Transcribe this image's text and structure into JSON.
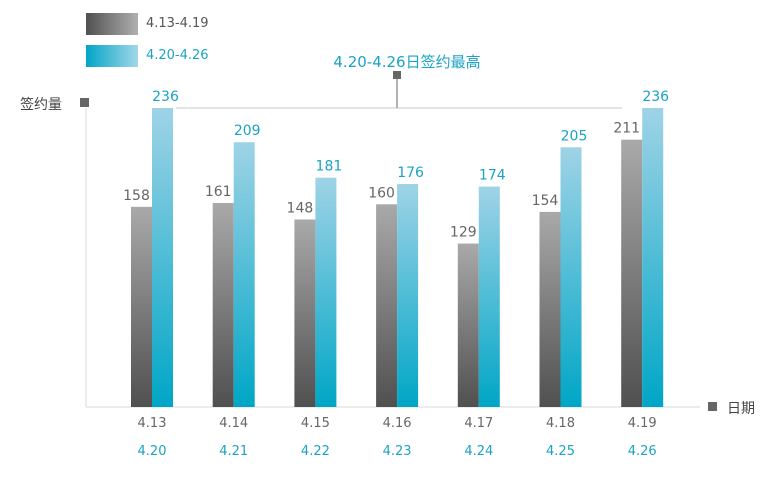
{
  "chart_data": {
    "type": "bar",
    "title": "",
    "ylabel": "签约量",
    "xlabel": "日期",
    "categories": [
      "4.13",
      "4.14",
      "4.15",
      "4.16",
      "4.17",
      "4.18",
      "4.19"
    ],
    "categories_secondary": [
      "4.20",
      "4.21",
      "4.22",
      "4.23",
      "4.24",
      "4.25",
      "4.26"
    ],
    "series": [
      {
        "name": "4.13-4.19",
        "values": [
          158,
          161,
          148,
          160,
          129,
          154,
          211
        ]
      },
      {
        "name": "4.20-4.26",
        "values": [
          236,
          209,
          181,
          176,
          174,
          205,
          236
        ]
      }
    ],
    "ylim": [
      0,
      250
    ],
    "grid": false,
    "legend": "top-left",
    "annotation": "4.20-4.26日签约最高",
    "colors": {
      "series1_top": "#a9a9a9",
      "series1_bottom": "#505050",
      "series2_top": "#9fd3e6",
      "series2_bottom": "#00a6c6",
      "accent_text": "#1aa3c4",
      "axis": "#d0d0d0",
      "marker": "#666666"
    }
  }
}
